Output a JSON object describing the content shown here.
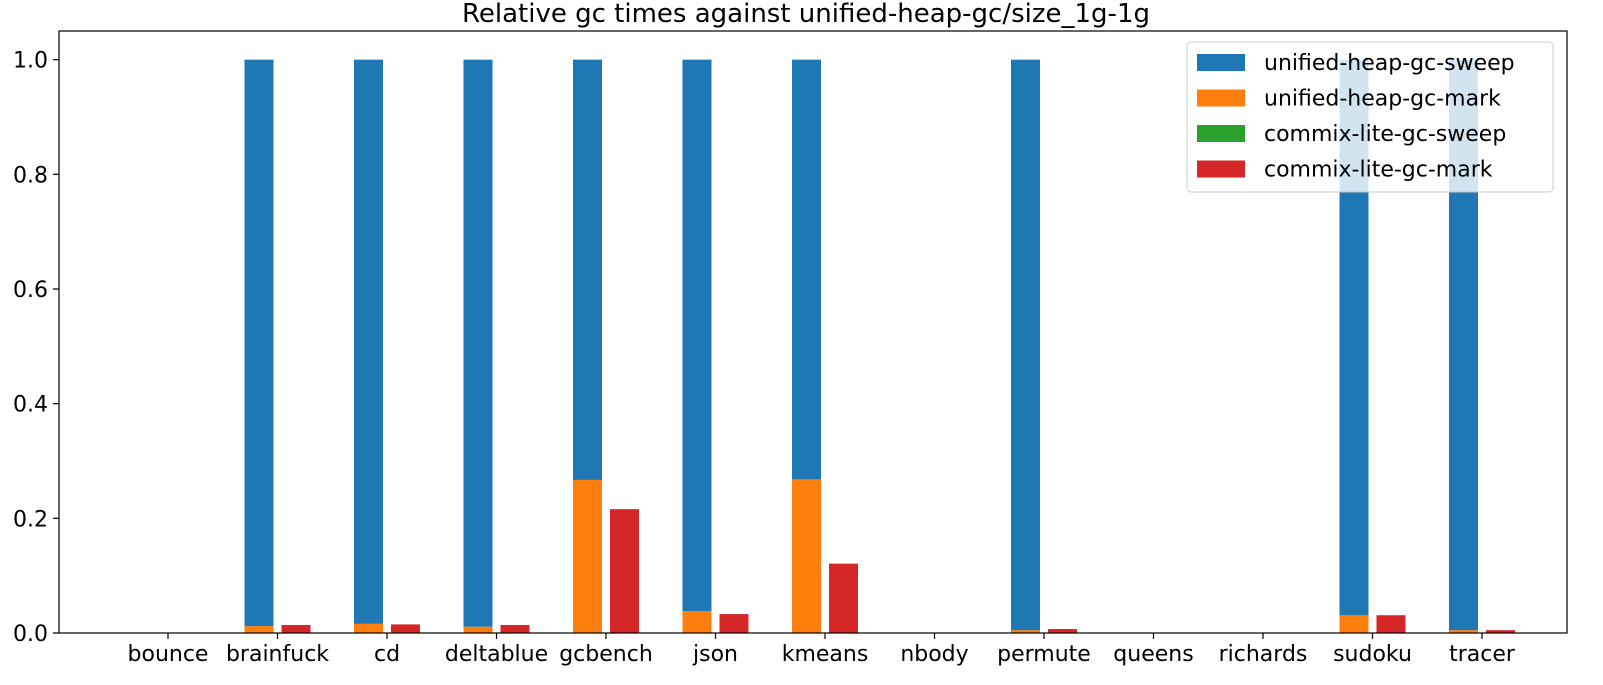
{
  "chart_data": {
    "type": "bar",
    "title": "Relative gc times against unified-heap-gc/size_1g-1g",
    "xlabel": "",
    "ylabel": "",
    "ylim": [
      0,
      1.05
    ],
    "yticks": [
      0.0,
      0.2,
      0.4,
      0.6,
      0.8,
      1.0
    ],
    "ytick_labels": [
      "0.0",
      "0.2",
      "0.4",
      "0.6",
      "0.8",
      "1.0"
    ],
    "grid": false,
    "legend_position": "top-right",
    "categories": [
      "bounce",
      "brainfuck",
      "cd",
      "deltablue",
      "gcbench",
      "json",
      "kmeans",
      "nbody",
      "permute",
      "queens",
      "richards",
      "sudoku",
      "tracer"
    ],
    "groups": [
      {
        "name": "unified-heap-gc",
        "stack": [
          {
            "series": "unified-heap-gc-mark",
            "values": [
              0,
              0.012,
              0.016,
              0.011,
              0.267,
              0.038,
              0.268,
              0,
              0.005,
              0,
              0,
              0.031,
              0.005
            ]
          },
          {
            "series": "unified-heap-gc-sweep",
            "values": [
              0,
              0.988,
              0.984,
              0.989,
              0.733,
              0.962,
              0.732,
              0,
              0.995,
              0,
              0,
              0.969,
              0.995
            ]
          }
        ]
      },
      {
        "name": "commix-lite-gc",
        "stack": [
          {
            "series": "commix-lite-gc-mark",
            "values": [
              0,
              0.014,
              0.015,
              0.014,
              0.216,
              0.033,
              0.121,
              0,
              0.007,
              0,
              0,
              0.031,
              0.005
            ]
          },
          {
            "series": "commix-lite-gc-sweep",
            "values": [
              0,
              0,
              0,
              0,
              0,
              0,
              0,
              0,
              0,
              0,
              0,
              0,
              0
            ]
          }
        ]
      }
    ],
    "series": [
      {
        "name": "unified-heap-gc-sweep",
        "color": "#1f77b4"
      },
      {
        "name": "unified-heap-gc-mark",
        "color": "#ff7f0e"
      },
      {
        "name": "commix-lite-gc-sweep",
        "color": "#2ca02c"
      },
      {
        "name": "commix-lite-gc-mark",
        "color": "#d62728"
      }
    ]
  }
}
